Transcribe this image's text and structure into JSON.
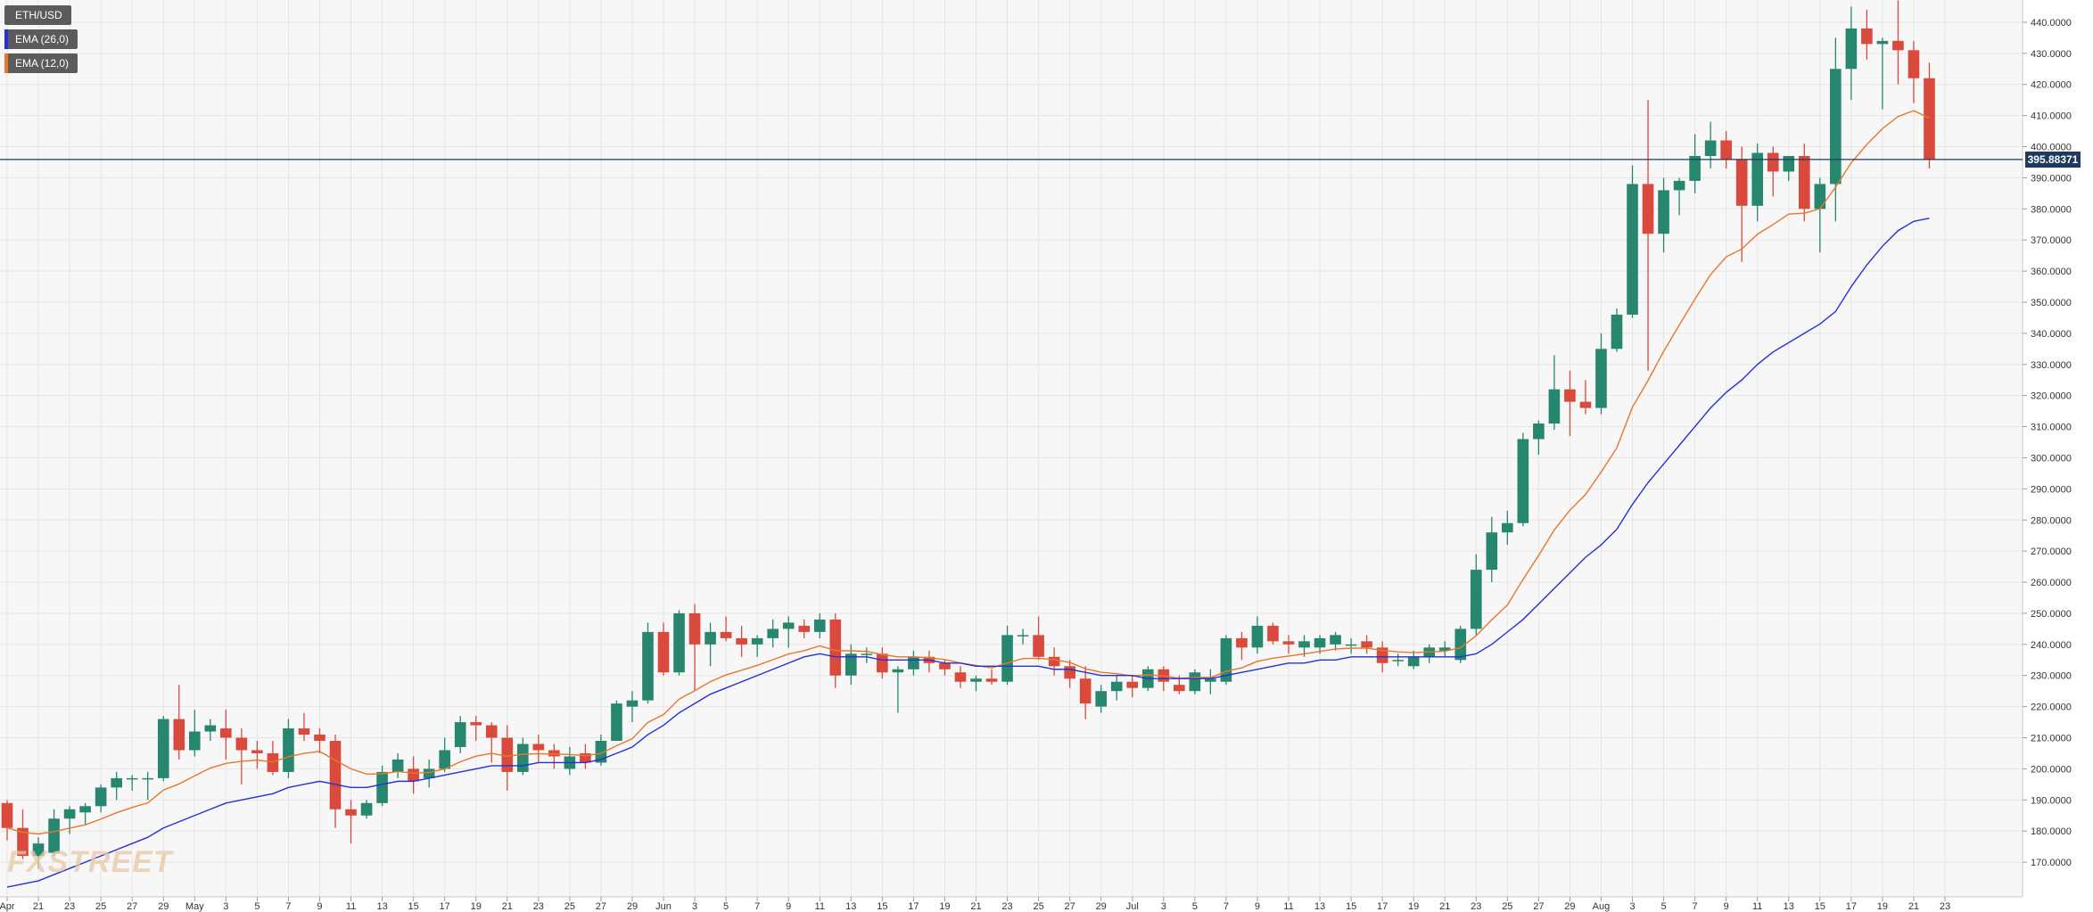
{
  "legend": {
    "symbol": "ETH/USD",
    "ema_long": "EMA (26,0)",
    "ema_short": "EMA (12,0)"
  },
  "watermark_text": "FXSTREET",
  "current_price": "395.88371",
  "colors": {
    "up": "#26876e",
    "down": "#d9493c",
    "ema_long": "#2431d6",
    "ema_short": "#e8772a",
    "price_line": "#1f3a5f",
    "legend_bg": "#5b5b5b",
    "grid": "#e6e6e6",
    "plot_bg": "#f7f7f7"
  },
  "chart_data": {
    "type": "candlestick",
    "symbol": "ETH/USD",
    "ylim": [
      160,
      446
    ],
    "y_ticks": [
      "170.0000",
      "180.0000",
      "190.0000",
      "200.0000",
      "210.0000",
      "220.0000",
      "230.0000",
      "240.0000",
      "250.0000",
      "260.0000",
      "270.0000",
      "280.0000",
      "290.0000",
      "300.0000",
      "310.0000",
      "320.0000",
      "330.0000",
      "340.0000",
      "350.0000",
      "360.0000",
      "370.0000",
      "380.0000",
      "390.0000",
      "400.0000",
      "410.0000",
      "420.0000",
      "430.0000",
      "440.0000"
    ],
    "x_labels": [
      "Apr",
      "21",
      "23",
      "25",
      "27",
      "29",
      "May",
      "3",
      "5",
      "7",
      "9",
      "11",
      "13",
      "15",
      "17",
      "19",
      "21",
      "23",
      "25",
      "27",
      "29",
      "Jun",
      "3",
      "5",
      "7",
      "9",
      "11",
      "13",
      "15",
      "17",
      "19",
      "21",
      "23",
      "25",
      "27",
      "29",
      "Jul",
      "3",
      "5",
      "7",
      "9",
      "11",
      "13",
      "15",
      "17",
      "19",
      "21",
      "23",
      "25",
      "27",
      "29",
      "Aug",
      "3",
      "5",
      "7",
      "9",
      "11",
      "13",
      "15",
      "17",
      "19",
      "21",
      "23"
    ],
    "candles": [
      {
        "o": 189,
        "h": 190,
        "l": 177,
        "c": 181
      },
      {
        "o": 181,
        "h": 187,
        "l": 171,
        "c": 172
      },
      {
        "o": 172,
        "h": 178,
        "l": 168,
        "c": 176
      },
      {
        "o": 173,
        "h": 187,
        "l": 172,
        "c": 184
      },
      {
        "o": 184,
        "h": 188,
        "l": 179,
        "c": 187
      },
      {
        "o": 186,
        "h": 189,
        "l": 182,
        "c": 188
      },
      {
        "o": 188,
        "h": 195,
        "l": 186,
        "c": 194
      },
      {
        "o": 194,
        "h": 199,
        "l": 190,
        "c": 197
      },
      {
        "o": 197,
        "h": 198,
        "l": 193,
        "c": 197
      },
      {
        "o": 197,
        "h": 199,
        "l": 190,
        "c": 197
      },
      {
        "o": 197,
        "h": 217,
        "l": 196,
        "c": 216
      },
      {
        "o": 216,
        "h": 227,
        "l": 203,
        "c": 206
      },
      {
        "o": 206,
        "h": 219,
        "l": 204,
        "c": 212
      },
      {
        "o": 212,
        "h": 216,
        "l": 209,
        "c": 214
      },
      {
        "o": 213,
        "h": 219,
        "l": 203,
        "c": 210
      },
      {
        "o": 210,
        "h": 213,
        "l": 195,
        "c": 206
      },
      {
        "o": 206,
        "h": 209,
        "l": 200,
        "c": 205
      },
      {
        "o": 205,
        "h": 209,
        "l": 198,
        "c": 199
      },
      {
        "o": 199,
        "h": 216,
        "l": 197,
        "c": 213
      },
      {
        "o": 213,
        "h": 218,
        "l": 209,
        "c": 211
      },
      {
        "o": 211,
        "h": 213,
        "l": 205,
        "c": 209
      },
      {
        "o": 209,
        "h": 211,
        "l": 181,
        "c": 187
      },
      {
        "o": 187,
        "h": 190,
        "l": 176,
        "c": 185
      },
      {
        "o": 185,
        "h": 190,
        "l": 184,
        "c": 189
      },
      {
        "o": 189,
        "h": 201,
        "l": 188,
        "c": 199
      },
      {
        "o": 199,
        "h": 205,
        "l": 197,
        "c": 203
      },
      {
        "o": 200,
        "h": 204,
        "l": 192,
        "c": 196
      },
      {
        "o": 197,
        "h": 203,
        "l": 194,
        "c": 200
      },
      {
        "o": 200,
        "h": 210,
        "l": 199,
        "c": 206
      },
      {
        "o": 207,
        "h": 217,
        "l": 205,
        "c": 215
      },
      {
        "o": 215,
        "h": 217,
        "l": 209,
        "c": 214
      },
      {
        "o": 214,
        "h": 215,
        "l": 202,
        "c": 210
      },
      {
        "o": 210,
        "h": 214,
        "l": 193,
        "c": 199
      },
      {
        "o": 199,
        "h": 210,
        "l": 198,
        "c": 208
      },
      {
        "o": 208,
        "h": 211,
        "l": 202,
        "c": 206
      },
      {
        "o": 206,
        "h": 208,
        "l": 200,
        "c": 204
      },
      {
        "o": 200,
        "h": 207,
        "l": 198,
        "c": 204
      },
      {
        "o": 205,
        "h": 208,
        "l": 200,
        "c": 202
      },
      {
        "o": 202,
        "h": 211,
        "l": 201,
        "c": 209
      },
      {
        "o": 209,
        "h": 222,
        "l": 209,
        "c": 221
      },
      {
        "o": 220,
        "h": 225,
        "l": 215,
        "c": 222
      },
      {
        "o": 222,
        "h": 247,
        "l": 221,
        "c": 244
      },
      {
        "o": 244,
        "h": 247,
        "l": 230,
        "c": 231
      },
      {
        "o": 231,
        "h": 251,
        "l": 230,
        "c": 250
      },
      {
        "o": 250,
        "h": 253,
        "l": 225,
        "c": 240
      },
      {
        "o": 240,
        "h": 247,
        "l": 233,
        "c": 244
      },
      {
        "o": 244,
        "h": 249,
        "l": 241,
        "c": 242
      },
      {
        "o": 242,
        "h": 246,
        "l": 236,
        "c": 240
      },
      {
        "o": 240,
        "h": 243,
        "l": 236,
        "c": 242
      },
      {
        "o": 242,
        "h": 248,
        "l": 239,
        "c": 245
      },
      {
        "o": 245,
        "h": 249,
        "l": 239,
        "c": 247
      },
      {
        "o": 246,
        "h": 248,
        "l": 242,
        "c": 244
      },
      {
        "o": 244,
        "h": 250,
        "l": 242,
        "c": 248
      },
      {
        "o": 248,
        "h": 250,
        "l": 226,
        "c": 230
      },
      {
        "o": 230,
        "h": 240,
        "l": 227,
        "c": 237
      },
      {
        "o": 237,
        "h": 239,
        "l": 234,
        "c": 237
      },
      {
        "o": 237,
        "h": 239,
        "l": 229,
        "c": 231
      },
      {
        "o": 231,
        "h": 233,
        "l": 218,
        "c": 232
      },
      {
        "o": 232,
        "h": 238,
        "l": 230,
        "c": 236
      },
      {
        "o": 236,
        "h": 238,
        "l": 231,
        "c": 234
      },
      {
        "o": 234,
        "h": 235,
        "l": 230,
        "c": 232
      },
      {
        "o": 231,
        "h": 233,
        "l": 226,
        "c": 228
      },
      {
        "o": 228,
        "h": 230,
        "l": 225,
        "c": 229
      },
      {
        "o": 229,
        "h": 232,
        "l": 227,
        "c": 228
      },
      {
        "o": 228,
        "h": 246,
        "l": 227,
        "c": 243
      },
      {
        "o": 243,
        "h": 245,
        "l": 240,
        "c": 243
      },
      {
        "o": 243,
        "h": 249,
        "l": 235,
        "c": 236
      },
      {
        "o": 236,
        "h": 239,
        "l": 230,
        "c": 233
      },
      {
        "o": 233,
        "h": 235,
        "l": 226,
        "c": 229
      },
      {
        "o": 229,
        "h": 233,
        "l": 216,
        "c": 221
      },
      {
        "o": 220,
        "h": 227,
        "l": 218,
        "c": 225
      },
      {
        "o": 225,
        "h": 230,
        "l": 222,
        "c": 228
      },
      {
        "o": 228,
        "h": 230,
        "l": 223,
        "c": 226
      },
      {
        "o": 226,
        "h": 233,
        "l": 225,
        "c": 232
      },
      {
        "o": 232,
        "h": 233,
        "l": 225,
        "c": 228
      },
      {
        "o": 227,
        "h": 230,
        "l": 224,
        "c": 225
      },
      {
        "o": 225,
        "h": 232,
        "l": 224,
        "c": 231
      },
      {
        "o": 228,
        "h": 232,
        "l": 224,
        "c": 229
      },
      {
        "o": 228,
        "h": 243,
        "l": 227,
        "c": 242
      },
      {
        "o": 242,
        "h": 244,
        "l": 235,
        "c": 239
      },
      {
        "o": 239,
        "h": 249,
        "l": 237,
        "c": 246
      },
      {
        "o": 246,
        "h": 247,
        "l": 240,
        "c": 241
      },
      {
        "o": 241,
        "h": 243,
        "l": 237,
        "c": 240
      },
      {
        "o": 239,
        "h": 243,
        "l": 236,
        "c": 241
      },
      {
        "o": 239,
        "h": 243,
        "l": 237,
        "c": 242
      },
      {
        "o": 240,
        "h": 244,
        "l": 238,
        "c": 243
      },
      {
        "o": 240,
        "h": 242,
        "l": 237,
        "c": 240
      },
      {
        "o": 241,
        "h": 243,
        "l": 237,
        "c": 239
      },
      {
        "o": 239,
        "h": 241,
        "l": 231,
        "c": 234
      },
      {
        "o": 235,
        "h": 237,
        "l": 233,
        "c": 235
      },
      {
        "o": 233,
        "h": 238,
        "l": 232,
        "c": 236
      },
      {
        "o": 236,
        "h": 240,
        "l": 234,
        "c": 239
      },
      {
        "o": 238,
        "h": 241,
        "l": 236,
        "c": 239
      },
      {
        "o": 235,
        "h": 246,
        "l": 234,
        "c": 245
      },
      {
        "o": 245,
        "h": 269,
        "l": 243,
        "c": 264
      },
      {
        "o": 264,
        "h": 281,
        "l": 260,
        "c": 276
      },
      {
        "o": 276,
        "h": 283,
        "l": 272,
        "c": 279
      },
      {
        "o": 279,
        "h": 308,
        "l": 278,
        "c": 306
      },
      {
        "o": 306,
        "h": 312,
        "l": 301,
        "c": 311
      },
      {
        "o": 311,
        "h": 333,
        "l": 309,
        "c": 322
      },
      {
        "o": 322,
        "h": 328,
        "l": 307,
        "c": 318
      },
      {
        "o": 318,
        "h": 325,
        "l": 314,
        "c": 316
      },
      {
        "o": 316,
        "h": 340,
        "l": 314,
        "c": 335
      },
      {
        "o": 335,
        "h": 348,
        "l": 334,
        "c": 346
      },
      {
        "o": 346,
        "h": 394,
        "l": 345,
        "c": 388
      },
      {
        "o": 388,
        "h": 415,
        "l": 328,
        "c": 372
      },
      {
        "o": 372,
        "h": 390,
        "l": 366,
        "c": 386
      },
      {
        "o": 386,
        "h": 390,
        "l": 378,
        "c": 389
      },
      {
        "o": 389,
        "h": 404,
        "l": 385,
        "c": 397
      },
      {
        "o": 397,
        "h": 408,
        "l": 393,
        "c": 402
      },
      {
        "o": 402,
        "h": 405,
        "l": 393,
        "c": 396
      },
      {
        "o": 396,
        "h": 400,
        "l": 363,
        "c": 381
      },
      {
        "o": 381,
        "h": 401,
        "l": 376,
        "c": 398
      },
      {
        "o": 398,
        "h": 400,
        "l": 384,
        "c": 392
      },
      {
        "o": 392,
        "h": 397,
        "l": 389,
        "c": 397
      },
      {
        "o": 397,
        "h": 401,
        "l": 376,
        "c": 380
      },
      {
        "o": 380,
        "h": 390,
        "l": 366,
        "c": 388
      },
      {
        "o": 388,
        "h": 435,
        "l": 376,
        "c": 425
      },
      {
        "o": 425,
        "h": 445,
        "l": 415,
        "c": 438
      },
      {
        "o": 438,
        "h": 444,
        "l": 428,
        "c": 433
      },
      {
        "o": 433,
        "h": 435,
        "l": 412,
        "c": 434
      },
      {
        "o": 434,
        "h": 447,
        "l": 420,
        "c": 431
      },
      {
        "o": 431,
        "h": 434,
        "l": 414,
        "c": 422
      },
      {
        "o": 422,
        "h": 427,
        "l": 393,
        "c": 395.88
      }
    ],
    "ema_long_series": [
      162,
      163,
      164,
      166,
      168,
      170,
      172,
      174,
      176,
      178,
      181,
      183,
      185,
      187,
      189,
      190,
      191,
      192,
      194,
      195,
      196,
      195,
      194,
      194,
      195,
      196,
      196,
      197,
      198,
      199,
      200,
      201,
      201,
      201,
      202,
      202,
      202,
      202,
      203,
      205,
      207,
      211,
      214,
      218,
      221,
      224,
      226,
      228,
      230,
      232,
      234,
      236,
      237,
      236,
      236,
      236,
      235,
      235,
      235,
      235,
      234,
      234,
      233,
      233,
      233,
      233,
      233,
      232,
      232,
      231,
      230,
      230,
      230,
      229,
      229,
      229,
      229,
      229,
      230,
      231,
      232,
      233,
      234,
      234,
      235,
      235,
      236,
      236,
      236,
      236,
      236,
      236,
      236,
      236,
      237,
      240,
      244,
      248,
      253,
      258,
      263,
      268,
      272,
      277,
      285,
      292,
      298,
      304,
      310,
      316,
      321,
      325,
      330,
      334,
      337,
      340,
      343,
      347,
      355,
      362,
      368,
      373,
      376,
      377
    ]
  }
}
